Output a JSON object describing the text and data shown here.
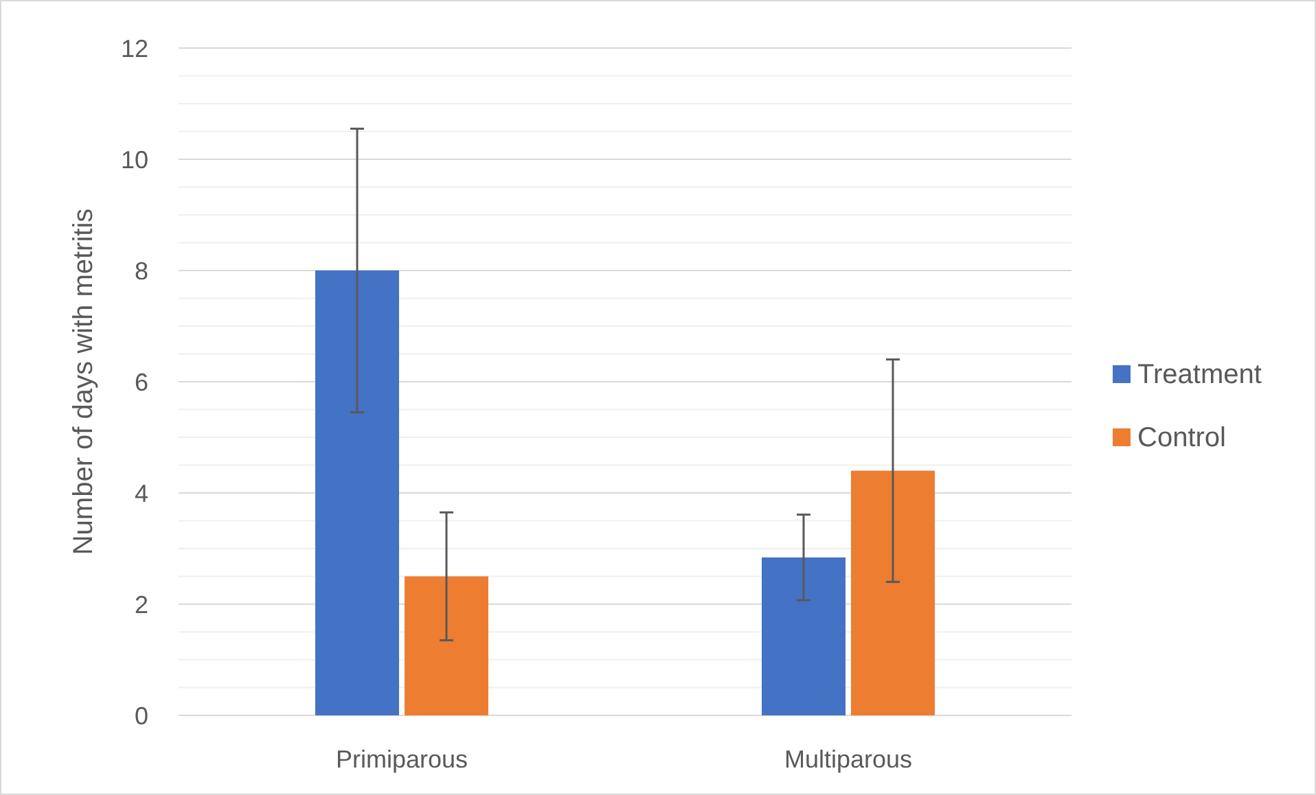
{
  "chart_data": {
    "type": "bar",
    "ylabel": "Number of days with metritis",
    "categories": [
      "Primiparous",
      "Multiparous"
    ],
    "series": [
      {
        "name": "Treatment",
        "color": "#4472c4",
        "values": [
          8.0,
          2.84
        ],
        "errors": [
          2.55,
          0.77
        ]
      },
      {
        "name": "Control",
        "color": "#ed7d31",
        "values": [
          2.5,
          4.4
        ],
        "errors": [
          1.15,
          2.0
        ]
      }
    ],
    "ylim": [
      0,
      12
    ],
    "yticks": [
      0,
      {
        "value": 0.5,
        "label": null
      },
      {
        "value": 1,
        "label": null
      },
      {
        "value": 1.5,
        "label": null
      },
      2,
      {
        "value": 2.5,
        "label": null
      },
      {
        "value": 3,
        "label": null
      },
      {
        "value": 3.5,
        "label": null
      },
      4,
      {
        "value": 4.5,
        "label": null
      },
      {
        "value": 5,
        "label": null
      },
      {
        "value": 5.5,
        "label": null
      },
      6,
      {
        "value": 6.5,
        "label": null
      },
      {
        "value": 7,
        "label": null
      },
      {
        "value": 7.5,
        "label": null
      },
      8,
      {
        "value": 8.5,
        "label": null
      },
      {
        "value": 9,
        "label": null
      },
      {
        "value": 9.5,
        "label": null
      },
      10,
      {
        "value": 10.5,
        "label": null
      },
      {
        "value": 11,
        "label": null
      },
      {
        "value": 11.5,
        "label": null
      },
      12
    ],
    "grid": "y",
    "legend": "right"
  }
}
